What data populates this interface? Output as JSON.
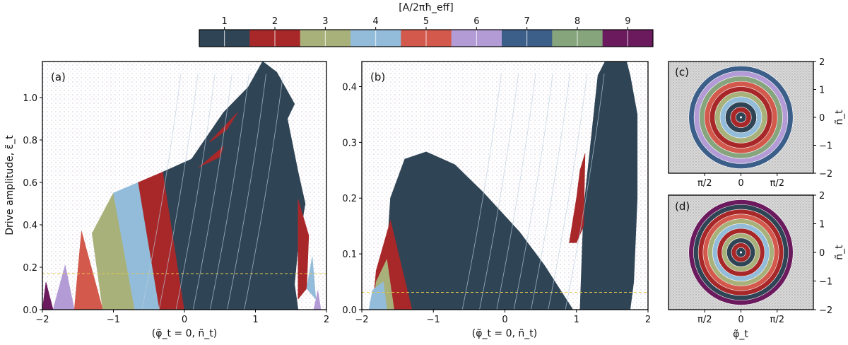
{
  "colors": [
    "#2f4556",
    "#a8282a",
    "#a9b17a",
    "#92bcd9",
    "#d2594c",
    "#b39bd6",
    "#3c5f8a",
    "#86a57d",
    "#6b1a5e"
  ],
  "chart_data": [
    {
      "type": "heatmap",
      "panel": "colorbar",
      "title": "[A/2πħ_eff]",
      "categories": [
        "1",
        "2",
        "3",
        "4",
        "5",
        "6",
        "7",
        "8",
        "9"
      ]
    },
    {
      "type": "heatmap",
      "panel": "(a)",
      "xlabel": "(φ̃_t = 0, ñ_t)",
      "ylabel": "Drive amplitude, ε̃_t",
      "xlim": [
        -2,
        2
      ],
      "ylim": [
        0,
        1.17
      ],
      "xticks": [
        "−2",
        "−1",
        "0",
        "1",
        "2"
      ],
      "yticks": [
        "0.0",
        "0.2",
        "0.4",
        "0.6",
        "0.8",
        "1.0"
      ],
      "xtick_values": [
        -2,
        -1,
        0,
        1,
        2
      ],
      "ytick_values": [
        0,
        0.2,
        0.4,
        0.6,
        0.8,
        1.0
      ],
      "dashed_line_y": 0.17,
      "regions": [
        {
          "cls": 9,
          "pts": [
            [
              -2,
              0
            ],
            [
              -1.95,
              0.13
            ],
            [
              -1.85,
              0
            ],
            [
              -2,
              0
            ]
          ]
        },
        {
          "cls": 6,
          "pts": [
            [
              -1.85,
              0
            ],
            [
              -1.68,
              0.21
            ],
            [
              -1.55,
              0
            ],
            [
              -1.85,
              0
            ]
          ]
        },
        {
          "cls": 5,
          "pts": [
            [
              -1.55,
              0
            ],
            [
              -1.45,
              0.37
            ],
            [
              -1.15,
              0
            ],
            [
              -1.55,
              0
            ]
          ]
        },
        {
          "cls": 3,
          "pts": [
            [
              -1.15,
              0
            ],
            [
              -1.3,
              0.36
            ],
            [
              -1.0,
              0.55
            ],
            [
              -0.7,
              0
            ],
            [
              -1.15,
              0
            ]
          ]
        },
        {
          "cls": 4,
          "pts": [
            [
              -0.7,
              0
            ],
            [
              -1.0,
              0.55
            ],
            [
              -0.65,
              0.6
            ],
            [
              -0.35,
              0
            ],
            [
              -0.7,
              0
            ]
          ]
        },
        {
          "cls": 2,
          "pts": [
            [
              -0.35,
              0
            ],
            [
              -0.65,
              0.6
            ],
            [
              -0.3,
              0.65
            ],
            [
              0,
              0
            ],
            [
              -0.35,
              0
            ]
          ]
        },
        {
          "cls": 1,
          "pts": [
            [
              0,
              0
            ],
            [
              -0.3,
              0.65
            ],
            [
              0.1,
              0.71
            ],
            [
              0.55,
              0.93
            ],
            [
              0.9,
              1.05
            ],
            [
              1.1,
              1.17
            ],
            [
              1.3,
              1.12
            ],
            [
              1.55,
              0.97
            ],
            [
              1.45,
              0.9
            ],
            [
              1.6,
              0.65
            ],
            [
              1.7,
              0.5
            ],
            [
              1.6,
              0.3
            ],
            [
              1.55,
              0.12
            ],
            [
              1.6,
              0
            ],
            [
              0,
              0
            ]
          ]
        },
        {
          "cls": 2,
          "pts": [
            [
              0.35,
              0.79
            ],
            [
              0.75,
              0.93
            ],
            [
              0.6,
              0.85
            ],
            [
              0.4,
              0.8
            ],
            [
              0.35,
              0.79
            ]
          ]
        },
        {
          "cls": 2,
          "pts": [
            [
              0.2,
              0.67
            ],
            [
              0.55,
              0.77
            ],
            [
              0.5,
              0.72
            ],
            [
              0.25,
              0.68
            ],
            [
              0.2,
              0.67
            ]
          ]
        },
        {
          "cls": 2,
          "pts": [
            [
              1.6,
              0.52
            ],
            [
              1.75,
              0.35
            ],
            [
              1.72,
              0.1
            ],
            [
              1.6,
              0.05
            ],
            [
              1.6,
              0.52
            ]
          ]
        },
        {
          "cls": 4,
          "pts": [
            [
              1.72,
              0.1
            ],
            [
              1.8,
              0.25
            ],
            [
              1.85,
              0.05
            ],
            [
              1.72,
              0.1
            ]
          ]
        },
        {
          "cls": 6,
          "pts": [
            [
              1.82,
              0
            ],
            [
              1.88,
              0.09
            ],
            [
              1.92,
              0
            ],
            [
              1.82,
              0
            ]
          ]
        }
      ]
    },
    {
      "type": "heatmap",
      "panel": "(b)",
      "xlabel": "(φ̃_t = 0, ñ_t)",
      "xlim": [
        -2,
        2
      ],
      "ylim": [
        0,
        0.445
      ],
      "xticks": [
        "−2",
        "−1",
        "0",
        "1",
        "2"
      ],
      "yticks": [
        "0.0",
        "0.1",
        "0.2",
        "0.3",
        "0.4"
      ],
      "xtick_values": [
        -2,
        -1,
        0,
        1,
        2
      ],
      "ytick_values": [
        0,
        0.1,
        0.2,
        0.3,
        0.4
      ],
      "dashed_line_y": 0.031,
      "regions": [
        {
          "cls": 1,
          "pts": [
            [
              -1.7,
              0
            ],
            [
              -1.6,
              0.2
            ],
            [
              -1.4,
              0.27
            ],
            [
              -1.1,
              0.283
            ],
            [
              -0.7,
              0.26
            ],
            [
              -0.3,
              0.21
            ],
            [
              0.2,
              0.14
            ],
            [
              0.55,
              0.08
            ],
            [
              0.95,
              0
            ],
            [
              -1.7,
              0
            ]
          ]
        },
        {
          "cls": 2,
          "pts": [
            [
              -1.85,
              0
            ],
            [
              -1.8,
              0.07
            ],
            [
              -1.6,
              0.16
            ],
            [
              -1.3,
              0
            ],
            [
              -1.85,
              0
            ]
          ]
        },
        {
          "cls": 3,
          "pts": [
            [
              -1.85,
              0
            ],
            [
              -1.8,
              0.05
            ],
            [
              -1.65,
              0.09
            ],
            [
              -1.55,
              0
            ],
            [
              -1.85,
              0
            ]
          ]
        },
        {
          "cls": 4,
          "pts": [
            [
              -1.9,
              0
            ],
            [
              -1.85,
              0.035
            ],
            [
              -1.7,
              0.05
            ],
            [
              -1.65,
              0
            ],
            [
              -1.9,
              0
            ]
          ]
        },
        {
          "cls": 1,
          "pts": [
            [
              1.05,
              0
            ],
            [
              1.1,
              0.18
            ],
            [
              1.2,
              0.3
            ],
            [
              1.3,
              0.42
            ],
            [
              1.4,
              0.445
            ],
            [
              1.7,
              0.445
            ],
            [
              1.75,
              0.42
            ],
            [
              1.85,
              0.35
            ],
            [
              1.85,
              0.2
            ],
            [
              1.8,
              0.05
            ],
            [
              1.75,
              0
            ],
            [
              1.05,
              0
            ]
          ]
        },
        {
          "cls": 2,
          "pts": [
            [
              0.9,
              0.12
            ],
            [
              1.0,
              0.2
            ],
            [
              1.05,
              0.25
            ],
            [
              1.12,
              0.28
            ],
            [
              1.1,
              0.15
            ],
            [
              1.0,
              0.12
            ],
            [
              0.9,
              0.12
            ]
          ]
        }
      ]
    },
    {
      "type": "heatmap",
      "panel": "(c)",
      "xlabel": "",
      "ylabel": "ñ_t",
      "xlim": [
        -3.14,
        3.14
      ],
      "ylim": [
        -2,
        2
      ],
      "xticks": [
        "π/2",
        "0",
        "π/2"
      ],
      "yticks": [
        "−2",
        "−1",
        "0",
        "1",
        "2"
      ],
      "xtick_values": [
        -1.57,
        0,
        1.57
      ],
      "ytick_values": [
        -2,
        -1,
        0,
        1,
        2
      ]
    },
    {
      "type": "heatmap",
      "panel": "(d)",
      "xlabel": "φ̃_t",
      "ylabel": "ñ_t",
      "xlim": [
        -3.14,
        3.14
      ],
      "ylim": [
        -2,
        2
      ],
      "xticks": [
        "π/2",
        "0",
        "π/2"
      ],
      "yticks": [
        "−2",
        "−1",
        "0",
        "1",
        "2"
      ],
      "xtick_values": [
        -1.57,
        0,
        1.57
      ],
      "ytick_values": [
        -2,
        -1,
        0,
        1,
        2
      ]
    }
  ]
}
